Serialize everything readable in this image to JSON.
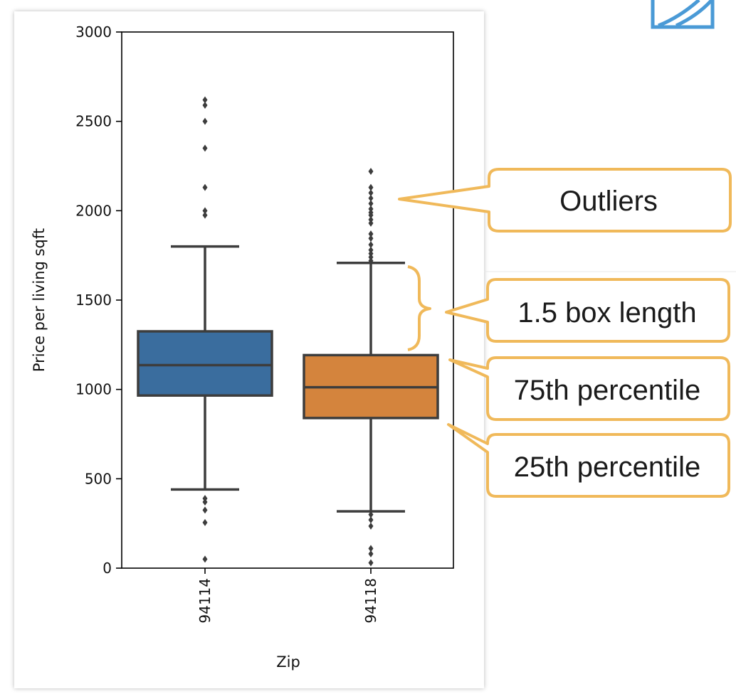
{
  "chart_data": {
    "type": "box",
    "title": "",
    "xlabel": "Zip",
    "ylabel": "Price per living sqft",
    "ylim": [
      0,
      3000
    ],
    "yticks": [
      0,
      500,
      1000,
      1500,
      2000,
      2500,
      3000
    ],
    "grid": false,
    "categories": [
      "94114",
      "94118"
    ],
    "series": [
      {
        "category": "94114",
        "color": "#3a6d9e",
        "q1": 966,
        "median": 1136,
        "q3": 1325,
        "whisker_low": 440,
        "whisker_high": 1800,
        "outliers": [
          2620,
          2590,
          2500,
          2350,
          2130,
          2000,
          1975,
          390,
          370,
          325,
          255,
          50
        ]
      },
      {
        "category": "94118",
        "color": "#d4843d",
        "q1": 840,
        "median": 1012,
        "q3": 1192,
        "whisker_low": 318,
        "whisker_high": 1708,
        "outliers": [
          2220,
          2130,
          2100,
          2070,
          2040,
          2010,
          1990,
          1975,
          1950,
          1930,
          1870,
          1845,
          1810,
          1780,
          1760,
          1740,
          1720,
          300,
          270,
          235,
          110,
          80,
          30
        ]
      }
    ]
  },
  "annotations": {
    "stroke_color": "#f0b95a",
    "outliers": "Outliers",
    "box_length": "1.5 box length",
    "q3": "75th percentile",
    "q1": "25th percentile"
  },
  "decor": {
    "logo_color": "#4a9ad6"
  }
}
